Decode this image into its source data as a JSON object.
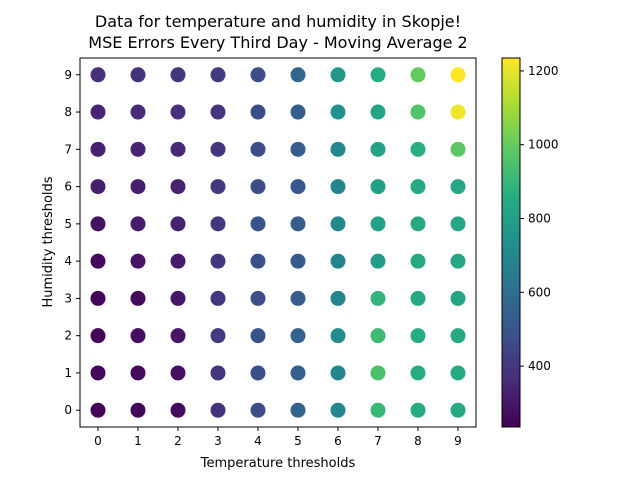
{
  "chart_data": {
    "type": "scatter",
    "title_line1": "Data for temperature and humidity in Skopje!",
    "title_line2": "MSE Errors Every Third Day - Moving Average 2",
    "xlabel": "Temperature thresholds",
    "ylabel": "Humidity thresholds",
    "x_ticks": [
      0,
      1,
      2,
      3,
      4,
      5,
      6,
      7,
      8,
      9
    ],
    "y_ticks": [
      0,
      1,
      2,
      3,
      4,
      5,
      6,
      7,
      8,
      9
    ],
    "xlim": [
      -0.45,
      9.45
    ],
    "ylim": [
      -0.45,
      9.45
    ],
    "colorbar": {
      "min": 235,
      "max": 1235,
      "ticks": [
        400,
        600,
        800,
        1000,
        1200
      ],
      "colormap": "viridis"
    },
    "grid": false,
    "values_by_humidity": [
      [
        240,
        255,
        265,
        380,
        470,
        560,
        700,
        900,
        850,
        840
      ],
      [
        250,
        260,
        280,
        390,
        480,
        540,
        690,
        950,
        850,
        840
      ],
      [
        245,
        270,
        295,
        410,
        490,
        550,
        720,
        920,
        850,
        840
      ],
      [
        250,
        265,
        300,
        400,
        470,
        530,
        690,
        890,
        840,
        820
      ],
      [
        255,
        290,
        310,
        400,
        480,
        520,
        690,
        790,
        840,
        830
      ],
      [
        285,
        310,
        330,
        400,
        490,
        530,
        700,
        810,
        840,
        830
      ],
      [
        320,
        320,
        330,
        400,
        470,
        510,
        690,
        800,
        840,
        830
      ],
      [
        330,
        340,
        350,
        390,
        470,
        530,
        700,
        810,
        870,
        980
      ],
      [
        340,
        360,
        370,
        390,
        470,
        540,
        740,
        820,
        960,
        1210
      ],
      [
        370,
        380,
        390,
        410,
        470,
        570,
        770,
        850,
        1000,
        1235
      ]
    ]
  }
}
